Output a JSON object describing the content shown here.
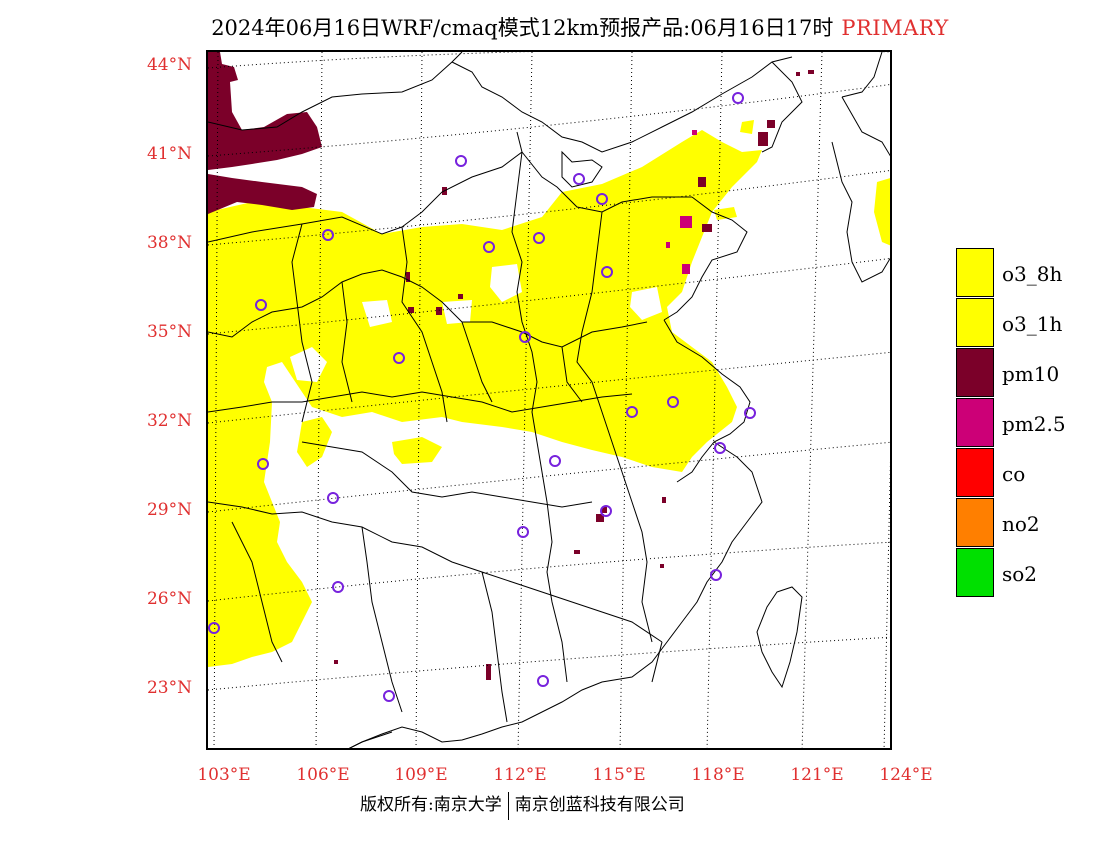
{
  "header": {
    "title": "2024年06月16日WRF/cmaq模式12km预报产品:06月16日17时",
    "badge": "PRIMARY",
    "badge_color": "#e03030"
  },
  "axes": {
    "lat_labels": [
      "44°N",
      "41°N",
      "38°N",
      "35°N",
      "32°N",
      "29°N",
      "26°N",
      "23°N"
    ],
    "lon_labels": [
      "103°E",
      "106°E",
      "109°E",
      "112°E",
      "115°E",
      "118°E",
      "121°E",
      "124°E"
    ],
    "label_color": "#e03030"
  },
  "legend": {
    "items": [
      {
        "label": "o3_8h",
        "color": "#ffff00"
      },
      {
        "label": "o3_1h",
        "color": "#ffff00"
      },
      {
        "label": "pm10",
        "color": "#7b0029"
      },
      {
        "label": "pm2.5",
        "color": "#cc0077"
      },
      {
        "label": "co",
        "color": "#ff0000"
      },
      {
        "label": "no2",
        "color": "#ff7f00"
      },
      {
        "label": "so2",
        "color": "#00e000"
      }
    ]
  },
  "footer": {
    "left": "版权所有:南京大学",
    "right": "南京创蓝科技有限公司"
  },
  "map": {
    "station_marker_color": "#7722dd",
    "province_line_color": "#000000",
    "grid_line_style": "dotted"
  }
}
